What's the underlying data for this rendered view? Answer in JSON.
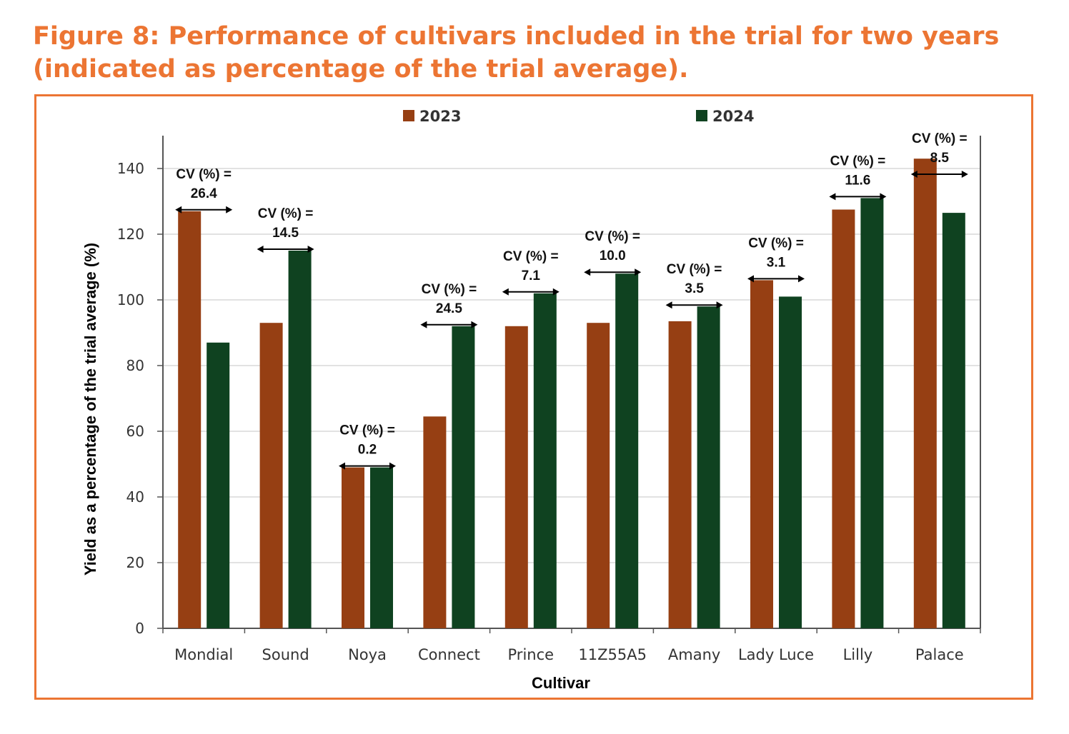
{
  "figure": {
    "title_line1": "Figure 8: Performance of cultivars included in the trial for two years",
    "title_line2": "(indicated as percentage of the trial average)."
  },
  "colors": {
    "title": "#ec7533",
    "frame": "#ec7533",
    "series_2023": "#963f13",
    "series_2024": "#0f4220"
  },
  "chart_data": {
    "type": "bar",
    "xlabel": "Cultivar",
    "ylabel": "Yield as a percentage of the trial average (%)",
    "ylim": [
      0,
      150
    ],
    "yticks": [
      "0",
      "20",
      "40",
      "60",
      "80",
      "100",
      "120",
      "140"
    ],
    "grid": true,
    "legend_position": "top-center",
    "categories": [
      "Mondial",
      "Sound",
      "Noya",
      "Connect",
      "Prince",
      "11Z55A5",
      "Amany",
      "Lady Luce",
      "Lilly",
      "Palace"
    ],
    "series": [
      {
        "name": "2023",
        "values": [
          127,
          93,
          49,
          64.5,
          92,
          93,
          93.5,
          106,
          127.5,
          143
        ]
      },
      {
        "name": "2024",
        "values": [
          87,
          115,
          49,
          92,
          102,
          108,
          98,
          101,
          131,
          126.5
        ]
      }
    ],
    "cv_label_prefix": "CV (%) =",
    "cv_values": [
      "26.4",
      "14.5",
      "0.2",
      "24.5",
      "7.1",
      "10.0",
      "3.5",
      "3.1",
      "11.6",
      "8.5"
    ]
  }
}
